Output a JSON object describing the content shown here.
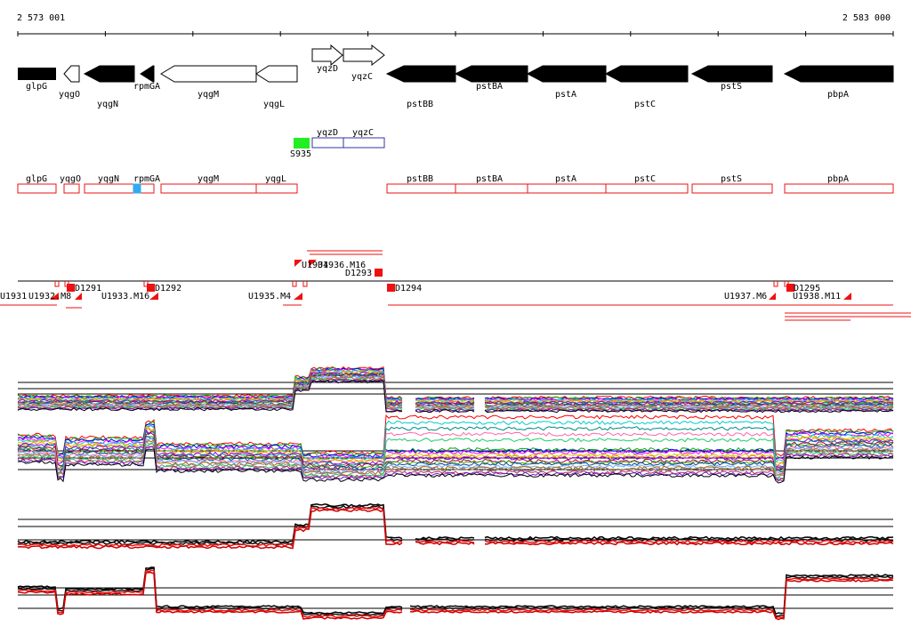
{
  "coordinates": {
    "start_label": "2 573 001",
    "end_label": "2 583 000",
    "start": 2573001,
    "end": 2583000
  },
  "colors": {
    "gene_fill": "#000000",
    "feature_red": "#ee1111",
    "feature_blue": "#3333aa",
    "green_marker": "#22ee22",
    "blue_marker": "#33aaee"
  },
  "gene_labels": [
    "glpG",
    "yqgO",
    "yqgN",
    "rpmGA",
    "yqgM",
    "yqgL",
    "yqzD",
    "yqzC",
    "pstBB",
    "pstBA",
    "pstA",
    "pstC",
    "pstS",
    "pbpA"
  ],
  "antisense_label": "S935",
  "small_gene_labels": [
    "yqzD",
    "yqzC"
  ],
  "region_labels": [
    "glpG",
    "yqgO",
    "yqgN",
    "rpmGA",
    "yqgM",
    "yqgL",
    "pstBB",
    "pstBA",
    "pstA",
    "pstC",
    "pstS",
    "pbpA"
  ],
  "segment_labels": [
    "U1931",
    "U1932.M8",
    "D1291",
    "U1933.M16",
    "D1292",
    "U1935.M4",
    "U1934",
    "U1936.M16",
    "D1293",
    "D1294",
    "U1937.M6",
    "D1295",
    "U1938.M11"
  ]
}
